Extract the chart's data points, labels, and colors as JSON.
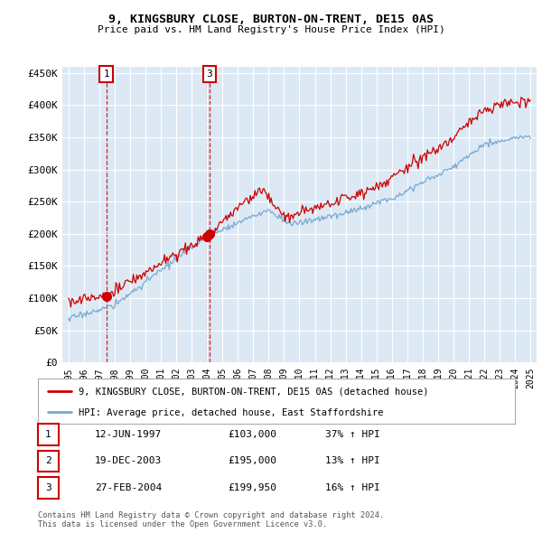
{
  "title1": "9, KINGSBURY CLOSE, BURTON-ON-TRENT, DE15 0AS",
  "title2": "Price paid vs. HM Land Registry's House Price Index (HPI)",
  "legend_line1": "9, KINGSBURY CLOSE, BURTON-ON-TRENT, DE15 0AS (detached house)",
  "legend_line2": "HPI: Average price, detached house, East Staffordshire",
  "ylabel_ticks": [
    "£0",
    "£50K",
    "£100K",
    "£150K",
    "£200K",
    "£250K",
    "£300K",
    "£350K",
    "£400K",
    "£450K"
  ],
  "ytick_values": [
    0,
    50000,
    100000,
    150000,
    200000,
    250000,
    300000,
    350000,
    400000,
    450000
  ],
  "xlim_start": 1994.6,
  "xlim_end": 2025.4,
  "ylim_min": 0,
  "ylim_max": 460000,
  "plot_bg_color": "#dce9f5",
  "red_line_color": "#cc0000",
  "blue_line_color": "#7aa8d0",
  "grid_color": "#ffffff",
  "sale_years": [
    1997.45,
    2003.97,
    2004.15
  ],
  "sale_prices": [
    103000,
    195000,
    199950
  ],
  "sale_labels": [
    "1",
    "2",
    "3"
  ],
  "show_top_labels": [
    true,
    false,
    true
  ],
  "table_rows": [
    [
      "1",
      "12-JUN-1997",
      "£103,000",
      "37% ↑ HPI"
    ],
    [
      "2",
      "19-DEC-2003",
      "£195,000",
      "13% ↑ HPI"
    ],
    [
      "3",
      "27-FEB-2004",
      "£199,950",
      "16% ↑ HPI"
    ]
  ],
  "footer": "Contains HM Land Registry data © Crown copyright and database right 2024.\nThis data is licensed under the Open Government Licence v3.0.",
  "xtick_years": [
    1995,
    1996,
    1997,
    1998,
    1999,
    2000,
    2001,
    2002,
    2003,
    2004,
    2005,
    2006,
    2007,
    2008,
    2009,
    2010,
    2011,
    2012,
    2013,
    2014,
    2015,
    2016,
    2017,
    2018,
    2019,
    2020,
    2021,
    2022,
    2023,
    2024,
    2025
  ]
}
